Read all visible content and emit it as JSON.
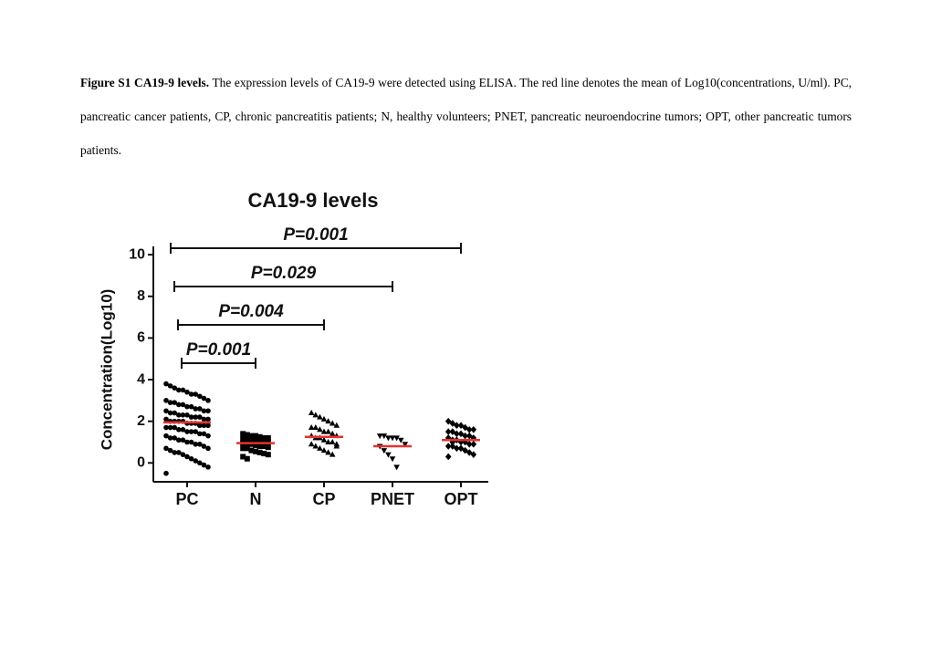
{
  "caption": {
    "label": "Figure S1 CA19-9 levels.",
    "text": "The expression levels of CA19-9 were detected using ELISA. The red line denotes the mean of Log10(concentrations, U/ml). PC, pancreatic cancer patients, CP, chronic pancreatitis patients; N, healthy volunteers; PNET, pancreatic neuroendocrine tumors; OPT, other pancreatic tumors patients."
  },
  "chart_data": {
    "type": "strip",
    "title": "CA19-9 levels",
    "y_label": "Concentration(Log10)",
    "categories": [
      "PC",
      "N",
      "CP",
      "PNET",
      "OPT"
    ],
    "markers": [
      "circle",
      "square",
      "triangle",
      "triangle-down",
      "diamond"
    ],
    "point_color": "#000000",
    "mean_color": "#e8312f",
    "points": [
      [
        3.8,
        3.7,
        3.6,
        3.5,
        3.5,
        3.4,
        3.3,
        3.3,
        3.2,
        3.1,
        3.0,
        3.0,
        2.9,
        2.9,
        2.8,
        2.8,
        2.7,
        2.7,
        2.6,
        2.6,
        2.5,
        2.5,
        2.5,
        2.4,
        2.4,
        2.3,
        2.3,
        2.3,
        2.2,
        2.2,
        2.2,
        2.1,
        2.1,
        2.1,
        2.0,
        2.0,
        2.0,
        2.0,
        1.9,
        1.9,
        1.9,
        1.8,
        1.8,
        1.8,
        1.7,
        1.7,
        1.7,
        1.6,
        1.6,
        1.5,
        1.5,
        1.5,
        1.4,
        1.4,
        1.3,
        1.3,
        1.2,
        1.2,
        1.1,
        1.1,
        1.0,
        1.0,
        0.9,
        0.9,
        0.8,
        0.7,
        0.7,
        0.6,
        0.5,
        0.5,
        0.4,
        0.3,
        0.2,
        0.1,
        0.0,
        -0.1,
        -0.2,
        -0.5
      ],
      [
        1.4,
        1.35,
        1.3,
        1.3,
        1.25,
        1.2,
        1.2,
        1.15,
        1.1,
        1.1,
        1.05,
        1.0,
        1.0,
        1.0,
        0.95,
        0.9,
        0.9,
        0.85,
        0.8,
        0.8,
        0.75,
        0.7,
        0.7,
        0.6,
        0.55,
        0.5,
        0.45,
        0.4,
        0.3,
        0.2
      ],
      [
        2.4,
        2.3,
        2.2,
        2.1,
        2.0,
        1.9,
        1.8,
        1.7,
        1.7,
        1.6,
        1.5,
        1.5,
        1.4,
        1.3,
        1.3,
        1.2,
        1.2,
        1.1,
        1.0,
        1.0,
        0.9,
        0.9,
        0.8,
        0.7,
        0.6,
        0.5,
        0.4,
        0.8
      ],
      [
        1.3,
        1.3,
        1.2,
        1.2,
        1.2,
        1.1,
        0.9,
        0.8,
        0.6,
        0.4,
        0.2,
        -0.2
      ],
      [
        2.0,
        1.9,
        1.8,
        1.8,
        1.7,
        1.6,
        1.6,
        1.5,
        1.5,
        1.4,
        1.4,
        1.3,
        1.3,
        1.2,
        1.2,
        1.1,
        1.1,
        1.0,
        1.0,
        0.9,
        0.9,
        0.8,
        0.8,
        0.7,
        0.7,
        0.6,
        0.5,
        0.4,
        0.3,
        1.0
      ]
    ],
    "means": [
      1.95,
      0.95,
      1.25,
      0.8,
      1.1
    ],
    "ylim": [
      -0.6,
      10.4
    ],
    "yticks": [
      0,
      2,
      4,
      6,
      8,
      10
    ],
    "comparisons": [
      {
        "pair": [
          0,
          4
        ],
        "label": "P=0.001"
      },
      {
        "pair": [
          0,
          3
        ],
        "label": "P=0.029"
      },
      {
        "pair": [
          0,
          2
        ],
        "label": "P=0.004"
      },
      {
        "pair": [
          0,
          1
        ],
        "label": "P=0.001"
      }
    ]
  }
}
